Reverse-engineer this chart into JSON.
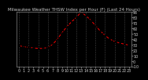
{
  "title": "Milwaukee Weather THSW Index per Hour (F) (Last 24 Hours)",
  "hours": [
    0,
    1,
    2,
    3,
    4,
    5,
    6,
    7,
    8,
    9,
    10,
    11,
    12,
    13,
    14,
    15,
    16,
    17,
    18,
    19,
    20,
    21,
    22,
    23
  ],
  "values": [
    28,
    26,
    25,
    24,
    23,
    23,
    25,
    30,
    40,
    52,
    63,
    72,
    80,
    90,
    83,
    75,
    65,
    55,
    47,
    40,
    36,
    33,
    31,
    29
  ],
  "ylim": [
    -10,
    90
  ],
  "ytick_vals": [
    -10,
    0,
    10,
    20,
    30,
    40,
    50,
    60,
    70,
    80,
    90
  ],
  "ytick_labels": [
    "-10",
    "0",
    "10",
    "20",
    "30",
    "40",
    "50",
    "60",
    "70",
    "80",
    "90"
  ],
  "bg_color": "#000000",
  "plot_bg_color": "#000000",
  "line_color": "#ff0000",
  "marker_color": "#000000",
  "marker_edge_color": "#000000",
  "grid_color": "#555555",
  "title_color": "#cccccc",
  "tick_color": "#cccccc",
  "title_fontsize": 4.0,
  "tick_fontsize": 3.5,
  "border_color": "#888888",
  "grid_hours": [
    0,
    2,
    4,
    6,
    8,
    10,
    12,
    14,
    16,
    18,
    20,
    22
  ]
}
